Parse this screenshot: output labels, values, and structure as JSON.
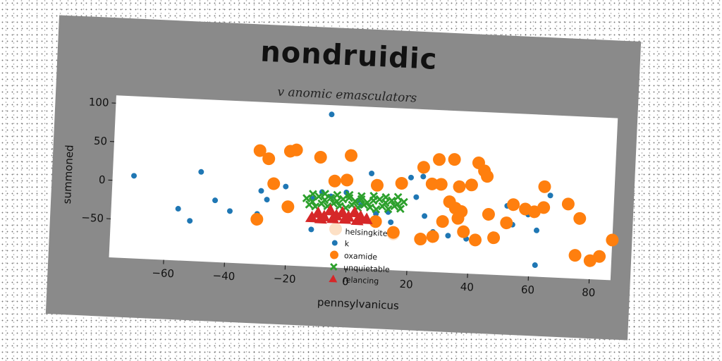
{
  "chart_data": {
    "type": "scatter",
    "title": "nondruidic",
    "subtitle": "v anomic emasculators",
    "xlabel": "pennsylvanicus",
    "ylabel": "summoned",
    "xlim": [
      -78,
      87
    ],
    "ylim": [
      -100,
      110
    ],
    "xticks": [
      -60,
      -40,
      -20,
      0,
      20,
      40,
      60,
      80
    ],
    "yticks": [
      -50,
      0,
      50,
      100
    ],
    "grid": false,
    "legend_position": "lower-center",
    "series": [
      {
        "name": "helsingkite",
        "marker": "circle",
        "color": "#fde0c5",
        "size": 9,
        "points": [
          [
            -4,
            -50
          ],
          [
            15,
            -53
          ]
        ]
      },
      {
        "name": "k",
        "marker": "circle",
        "color": "#1f77b4",
        "size": 4,
        "points": [
          [
            -7,
            98
          ],
          [
            7,
            24
          ],
          [
            -71,
            7
          ],
          [
            -56,
            -33
          ],
          [
            -52,
            -48
          ],
          [
            -49,
            16
          ],
          [
            -44,
            -20
          ],
          [
            -39,
            -33
          ],
          [
            -29,
            -5
          ],
          [
            -27,
            -16
          ],
          [
            -30,
            -35
          ],
          [
            -21,
            2
          ],
          [
            -12,
            -12
          ],
          [
            -9,
            -3
          ],
          [
            -6,
            -8
          ],
          [
            -1,
            -2
          ],
          [
            3,
            -12
          ],
          [
            9,
            -28
          ],
          [
            13,
            -25
          ],
          [
            14,
            -38
          ],
          [
            17,
            15
          ],
          [
            20,
            21
          ],
          [
            24,
            23
          ],
          [
            22,
            -4
          ],
          [
            25,
            -28
          ],
          [
            28,
            -48
          ],
          [
            31,
            -33
          ],
          [
            33,
            -52
          ],
          [
            39,
            -55
          ],
          [
            52,
            -10
          ],
          [
            54,
            -34
          ],
          [
            59,
            -20
          ],
          [
            62,
            -40
          ],
          [
            66,
            6
          ],
          [
            62,
            -85
          ],
          [
            -12,
            -52
          ],
          [
            -6,
            -26
          ],
          [
            4,
            -18
          ]
        ]
      },
      {
        "name": "oxamide",
        "marker": "circle",
        "color": "#ff7f0e",
        "size": 9,
        "points": [
          [
            -30,
            47
          ],
          [
            -27,
            37
          ],
          [
            -20,
            48
          ],
          [
            -18,
            50
          ],
          [
            -10,
            42
          ],
          [
            -5,
            12
          ],
          [
            -1,
            14
          ],
          [
            0,
            46
          ],
          [
            -25,
            5
          ],
          [
            -20,
            -24
          ],
          [
            -30,
            -42
          ],
          [
            9,
            9
          ],
          [
            17,
            13
          ],
          [
            24,
            35
          ],
          [
            27,
            14
          ],
          [
            30,
            14
          ],
          [
            29,
            46
          ],
          [
            34,
            47
          ],
          [
            36,
            12
          ],
          [
            40,
            15
          ],
          [
            42,
            44
          ],
          [
            44,
            34
          ],
          [
            45,
            27
          ],
          [
            33,
            -8
          ],
          [
            35,
            -16
          ],
          [
            37,
            -20
          ],
          [
            31,
            -34
          ],
          [
            36,
            -29
          ],
          [
            38,
            -46
          ],
          [
            42,
            -56
          ],
          [
            46,
            -22
          ],
          [
            48,
            -52
          ],
          [
            52,
            -32
          ],
          [
            54,
            -8
          ],
          [
            58,
            -13
          ],
          [
            61,
            -16
          ],
          [
            64,
            -10
          ],
          [
            64,
            17
          ],
          [
            72,
            -4
          ],
          [
            76,
            -22
          ],
          [
            75,
            -70
          ],
          [
            80,
            -76
          ],
          [
            83,
            -70
          ],
          [
            87,
            -48
          ],
          [
            9,
            -38
          ],
          [
            15,
            -51
          ],
          [
            24,
            -58
          ],
          [
            28,
            -54
          ]
        ]
      },
      {
        "name": "unquietable",
        "marker": "x",
        "color": "#2ca02c",
        "size": 7,
        "points": [
          [
            -14,
            -12
          ],
          [
            -12,
            -16
          ],
          [
            -10,
            -9
          ],
          [
            -8,
            -13
          ],
          [
            -6,
            -10
          ],
          [
            -4,
            -14
          ],
          [
            -2,
            -11
          ],
          [
            0,
            -9
          ],
          [
            2,
            -13
          ],
          [
            4,
            -10
          ],
          [
            6,
            -14
          ],
          [
            8,
            -11
          ],
          [
            10,
            -9
          ],
          [
            12,
            -13
          ],
          [
            14,
            -10
          ],
          [
            16,
            -14
          ],
          [
            18,
            -11
          ],
          [
            -13,
            -20
          ],
          [
            -11,
            -22
          ],
          [
            -9,
            -18
          ],
          [
            -7,
            -21
          ],
          [
            -5,
            -17
          ],
          [
            -3,
            -20
          ],
          [
            -1,
            -22
          ],
          [
            1,
            -18
          ],
          [
            3,
            -21
          ],
          [
            5,
            -17
          ],
          [
            7,
            -20
          ],
          [
            9,
            -22
          ],
          [
            11,
            -18
          ],
          [
            13,
            -21
          ],
          [
            15,
            -17
          ],
          [
            17,
            -20
          ],
          [
            -12,
            -6
          ],
          [
            -8,
            -5
          ],
          [
            -4,
            -6
          ],
          [
            0,
            -5
          ],
          [
            4,
            -6
          ],
          [
            8,
            -5
          ],
          [
            12,
            -6
          ],
          [
            16,
            -5
          ]
        ]
      },
      {
        "name": "relancing",
        "marker": "triangle",
        "color": "#d62728",
        "size": 9,
        "points": [
          [
            -12,
            -36
          ],
          [
            -10,
            -30
          ],
          [
            -8,
            -34
          ],
          [
            -6,
            -26
          ],
          [
            -4,
            -32
          ],
          [
            -2,
            -28
          ],
          [
            0,
            -33
          ],
          [
            2,
            -27
          ],
          [
            4,
            -32
          ],
          [
            6,
            -35
          ],
          [
            -9,
            -37
          ],
          [
            -1,
            -36
          ],
          [
            3,
            -37
          ],
          [
            -5,
            -36
          ]
        ]
      }
    ]
  }
}
